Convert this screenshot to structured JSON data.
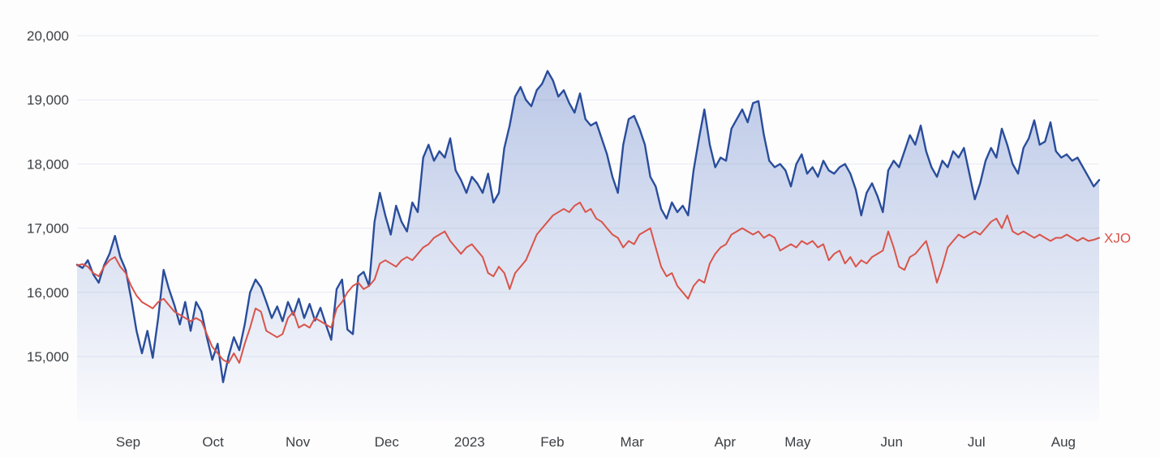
{
  "chart_data": {
    "type": "line",
    "title": "",
    "xlabel": "",
    "ylabel": "",
    "grid": "horizontal",
    "legend": "inline-right-of-last-point",
    "y_tick_values": [
      15000,
      16000,
      17000,
      18000,
      19000,
      20000
    ],
    "y_tick_labels": [
      "15,000",
      "16,000",
      "17,000",
      "18,000",
      "19,000",
      "20,000"
    ],
    "ylim_display": [
      14000,
      20000
    ],
    "x_tick_labels": [
      "Sep",
      "Oct",
      "Nov",
      "Dec",
      "2023",
      "Feb",
      "Mar",
      "Apr",
      "May",
      "Jun",
      "Jul",
      "Aug"
    ],
    "x_tick_positions": [
      0.05,
      0.133,
      0.216,
      0.303,
      0.384,
      0.465,
      0.543,
      0.634,
      0.705,
      0.797,
      0.88,
      0.965
    ],
    "style": {
      "background": "#fdfdfe",
      "grid_color": "#e8eaee",
      "axis_text_color": "#3c4043",
      "blue_line_color": "#2a4d9b",
      "area_top_color": "rgba(93,124,197,0.45)",
      "area_bottom_color": "rgba(93,124,197,0.02)",
      "red_line_color": "#d9544a"
    },
    "series": [
      {
        "name": "",
        "color": "#2a4d9b",
        "area_fill": true,
        "values": [
          16430,
          16380,
          16500,
          16280,
          16150,
          16420,
          16600,
          16880,
          16550,
          16350,
          15900,
          15400,
          15050,
          15400,
          14980,
          15600,
          16350,
          16050,
          15800,
          15500,
          15850,
          15400,
          15850,
          15700,
          15300,
          14950,
          15200,
          14600,
          15000,
          15300,
          15100,
          15500,
          16000,
          16200,
          16080,
          15850,
          15600,
          15780,
          15550,
          15850,
          15650,
          15900,
          15600,
          15820,
          15560,
          15760,
          15500,
          15260,
          16050,
          16200,
          15420,
          15350,
          16250,
          16320,
          16100,
          17100,
          17550,
          17200,
          16900,
          17350,
          17100,
          16950,
          17400,
          17250,
          18100,
          18300,
          18050,
          18200,
          18100,
          18400,
          17900,
          17750,
          17550,
          17800,
          17700,
          17550,
          17850,
          17400,
          17550,
          18250,
          18600,
          19050,
          19200,
          19000,
          18900,
          19150,
          19250,
          19450,
          19300,
          19050,
          19150,
          18950,
          18800,
          19100,
          18700,
          18600,
          18650,
          18400,
          18150,
          17800,
          17550,
          18300,
          18700,
          18750,
          18550,
          18300,
          17800,
          17650,
          17300,
          17150,
          17400,
          17250,
          17350,
          17200,
          17900,
          18400,
          18850,
          18300,
          17950,
          18100,
          18050,
          18550,
          18700,
          18850,
          18650,
          18950,
          18980,
          18450,
          18050,
          17950,
          18000,
          17900,
          17650,
          18000,
          18150,
          17850,
          17950,
          17800,
          18050,
          17900,
          17850,
          17950,
          18000,
          17850,
          17600,
          17200,
          17550,
          17700,
          17500,
          17250,
          17900,
          18050,
          17950,
          18200,
          18450,
          18300,
          18600,
          18200,
          17950,
          17800,
          18050,
          17950,
          18200,
          18100,
          18250,
          17850,
          17450,
          17700,
          18050,
          18250,
          18100,
          18550,
          18300,
          18000,
          17850,
          18250,
          18400,
          18680,
          18300,
          18350,
          18650,
          18200,
          18100,
          18150,
          18050,
          18100,
          17950,
          17800,
          17650,
          17750
        ]
      },
      {
        "name": "XJO",
        "color": "#d9544a",
        "area_fill": false,
        "values": [
          16420,
          16440,
          16400,
          16300,
          16250,
          16400,
          16500,
          16550,
          16400,
          16300,
          16100,
          15950,
          15850,
          15800,
          15750,
          15850,
          15900,
          15800,
          15700,
          15650,
          15600,
          15550,
          15600,
          15550,
          15350,
          15150,
          15050,
          14950,
          14900,
          15050,
          14900,
          15200,
          15450,
          15750,
          15700,
          15400,
          15350,
          15300,
          15350,
          15600,
          15700,
          15450,
          15500,
          15450,
          15600,
          15550,
          15500,
          15450,
          15750,
          15850,
          16000,
          16100,
          16150,
          16050,
          16100,
          16200,
          16450,
          16500,
          16450,
          16400,
          16500,
          16550,
          16500,
          16600,
          16700,
          16750,
          16850,
          16900,
          16950,
          16800,
          16700,
          16600,
          16700,
          16750,
          16650,
          16550,
          16300,
          16250,
          16400,
          16300,
          16050,
          16300,
          16400,
          16500,
          16700,
          16900,
          17000,
          17100,
          17200,
          17250,
          17300,
          17250,
          17350,
          17400,
          17250,
          17300,
          17150,
          17100,
          17000,
          16900,
          16850,
          16700,
          16800,
          16750,
          16900,
          16950,
          17000,
          16700,
          16400,
          16250,
          16300,
          16100,
          16000,
          15900,
          16100,
          16200,
          16150,
          16450,
          16600,
          16700,
          16750,
          16900,
          16950,
          17000,
          16950,
          16900,
          16950,
          16850,
          16900,
          16850,
          16650,
          16700,
          16750,
          16700,
          16800,
          16750,
          16800,
          16700,
          16750,
          16500,
          16600,
          16650,
          16450,
          16550,
          16400,
          16500,
          16450,
          16550,
          16600,
          16650,
          16950,
          16700,
          16400,
          16350,
          16550,
          16600,
          16700,
          16800,
          16500,
          16150,
          16400,
          16700,
          16800,
          16900,
          16850,
          16900,
          16950,
          16900,
          17000,
          17100,
          17150,
          17000,
          17200,
          16950,
          16900,
          16950,
          16900,
          16850,
          16900,
          16850,
          16800,
          16850,
          16850,
          16900,
          16850,
          16800,
          16850,
          16800,
          16820,
          16850
        ]
      }
    ]
  }
}
